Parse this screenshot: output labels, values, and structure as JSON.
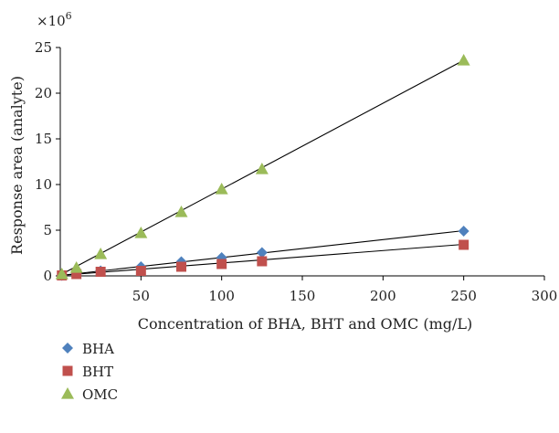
{
  "chart_data": {
    "type": "scatter",
    "xlabel": "Concentration of BHA, BHT and OMC (mg/L)",
    "ylabel": "Response area (analyte)",
    "y_multiplier": "×10",
    "y_exponent": "6",
    "xlim": [
      0,
      300
    ],
    "ylim": [
      0,
      25
    ],
    "x_ticks": [
      50,
      100,
      150,
      200,
      250,
      300
    ],
    "y_ticks": [
      0,
      5,
      10,
      15,
      20,
      25
    ],
    "grid": false,
    "legend_position": "bottom-left",
    "series": [
      {
        "name": "BHA",
        "marker": "diamond",
        "color": "#4f81bd",
        "points": [
          [
            1,
            0.05
          ],
          [
            10,
            0.25
          ],
          [
            25,
            0.55
          ],
          [
            50,
            1.0
          ],
          [
            75,
            1.55
          ],
          [
            100,
            2.0
          ],
          [
            125,
            2.55
          ],
          [
            250,
            4.9
          ]
        ],
        "fit": [
          [
            0,
            0.05
          ],
          [
            250,
            4.95
          ]
        ]
      },
      {
        "name": "BHT",
        "marker": "square",
        "color": "#c0504d",
        "points": [
          [
            1,
            0.05
          ],
          [
            10,
            0.2
          ],
          [
            25,
            0.45
          ],
          [
            50,
            0.55
          ],
          [
            75,
            1.0
          ],
          [
            100,
            1.3
          ],
          [
            125,
            1.6
          ],
          [
            250,
            3.4
          ]
        ],
        "fit": [
          [
            0,
            0.05
          ],
          [
            250,
            3.45
          ]
        ]
      },
      {
        "name": "OMC",
        "marker": "triangle",
        "color": "#9bbb59",
        "points": [
          [
            1,
            0.2
          ],
          [
            10,
            0.9
          ],
          [
            25,
            2.4
          ],
          [
            50,
            4.7
          ],
          [
            75,
            7.0
          ],
          [
            100,
            9.5
          ],
          [
            125,
            11.7
          ],
          [
            250,
            23.6
          ]
        ],
        "fit": [
          [
            0,
            0.1
          ],
          [
            250,
            23.6
          ]
        ]
      }
    ]
  }
}
